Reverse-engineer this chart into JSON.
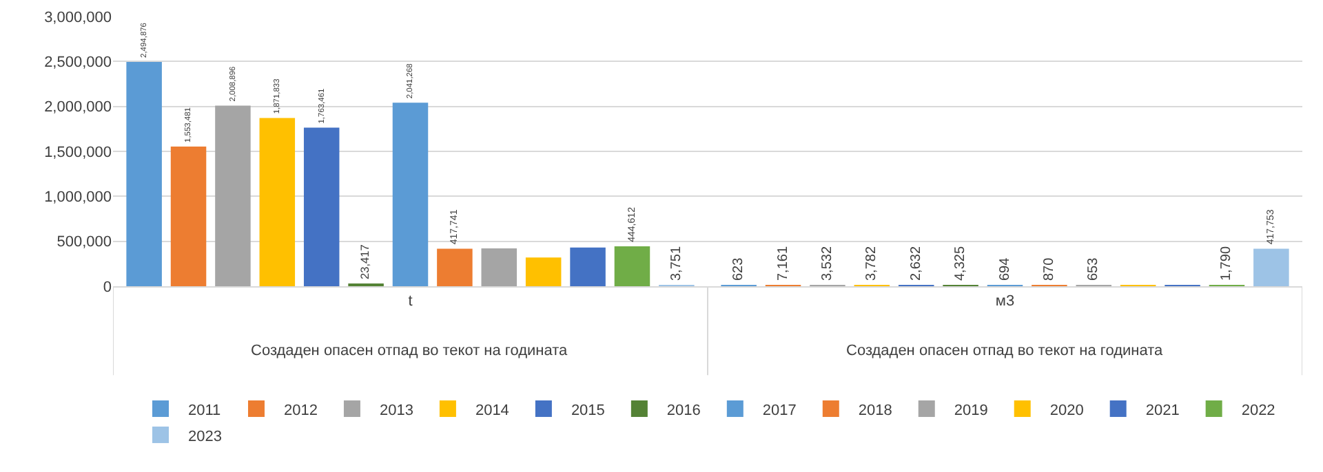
{
  "chart_data": {
    "type": "bar",
    "categories": [
      "t",
      "м3"
    ],
    "series": [
      {
        "name": "2011",
        "color": "#5b9bd5",
        "values": [
          2494876,
          623
        ],
        "value_labels": [
          "2,494,876",
          "623"
        ]
      },
      {
        "name": "2012",
        "color": "#ed7d31",
        "values": [
          1553481,
          7161
        ],
        "value_labels": [
          "1,553,481",
          "7,161"
        ]
      },
      {
        "name": "2013",
        "color": "#a5a5a5",
        "values": [
          2008896,
          3532
        ],
        "value_labels": [
          "2,008,896",
          "3,532"
        ]
      },
      {
        "name": "2014",
        "color": "#ffc000",
        "values": [
          1871833,
          3782
        ],
        "value_labels": [
          "1,871,833",
          "3,782"
        ]
      },
      {
        "name": "2015",
        "color": "#4472c4",
        "values": [
          1763461,
          2632
        ],
        "value_labels": [
          "1,763,461",
          "2,632"
        ]
      },
      {
        "name": "2016",
        "color": "#548235",
        "values": [
          23417,
          4325
        ],
        "value_labels": [
          "23,417",
          "4,325"
        ]
      },
      {
        "name": "2017",
        "color": "#5b9bd5",
        "values": [
          2041268,
          694
        ],
        "value_labels": [
          "2,041,268",
          "694"
        ]
      },
      {
        "name": "2018",
        "color": "#ed7d31",
        "values": [
          417741,
          870
        ],
        "value_labels": [
          "417,741",
          "870"
        ]
      },
      {
        "name": "2019",
        "color": "#a5a5a5",
        "values": [
          420000,
          653
        ],
        "value_labels": [
          null,
          "653"
        ]
      },
      {
        "name": "2020",
        "color": "#ffc000",
        "values": [
          320000,
          1000
        ],
        "value_labels": [
          null,
          null
        ]
      },
      {
        "name": "2021",
        "color": "#4472c4",
        "values": [
          430000,
          1000
        ],
        "value_labels": [
          null,
          null
        ]
      },
      {
        "name": "2022",
        "color": "#70ad47",
        "values": [
          444612,
          1790
        ],
        "value_labels": [
          "444,612",
          "1,790"
        ]
      },
      {
        "name": "2023",
        "color": "#9dc3e6",
        "values": [
          3751,
          417753
        ],
        "value_labels": [
          "3,751",
          "417,753"
        ]
      }
    ],
    "ylim": [
      0,
      3000000
    ],
    "yticks": [
      {
        "value": 0,
        "label": "0"
      },
      {
        "value": 500000,
        "label": "500,000"
      },
      {
        "value": 1000000,
        "label": "1,000,000"
      },
      {
        "value": 1500000,
        "label": "1,500,000"
      },
      {
        "value": 2000000,
        "label": "2,000,000"
      },
      {
        "value": 2500000,
        "label": "2,500,000"
      },
      {
        "value": 3000000,
        "label": "3,000,000"
      }
    ],
    "annotations": [
      "Создаден опасен отпад во текот на годината",
      "Создаден опасен отпад во текот на годината"
    ],
    "grid": "y",
    "legend": "bottom"
  }
}
